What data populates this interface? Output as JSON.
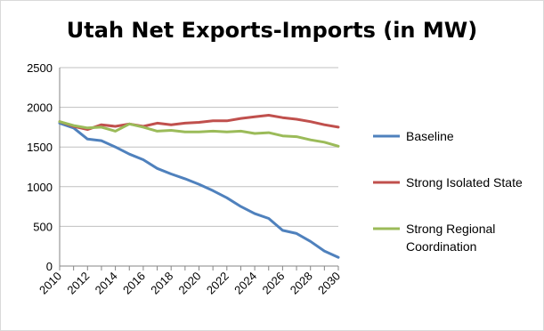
{
  "chart_data": {
    "type": "line",
    "title": "Utah Net Exports-Imports (in MW)",
    "xlabel": "",
    "ylabel": "",
    "ylim": [
      0,
      2500
    ],
    "yticks": [
      0,
      500,
      1000,
      1500,
      2000,
      2500
    ],
    "x": [
      2010,
      2011,
      2012,
      2013,
      2014,
      2015,
      2016,
      2017,
      2018,
      2019,
      2020,
      2021,
      2022,
      2023,
      2024,
      2025,
      2026,
      2027,
      2028,
      2029,
      2030
    ],
    "xticks": [
      "2010",
      "2012",
      "2014",
      "2016",
      "2018",
      "2020",
      "2022",
      "2024",
      "2026",
      "2028",
      "2030"
    ],
    "grid": "horizontal",
    "legend_position": "right",
    "series": [
      {
        "name": "Baseline",
        "color": "#4f81bd",
        "values": [
          1800,
          1740,
          1600,
          1580,
          1500,
          1410,
          1340,
          1230,
          1160,
          1100,
          1030,
          950,
          860,
          750,
          660,
          600,
          450,
          410,
          310,
          190,
          110
        ]
      },
      {
        "name": "Strong Isolated State",
        "color": "#c0504d",
        "values": [
          1820,
          1760,
          1720,
          1780,
          1760,
          1790,
          1760,
          1800,
          1780,
          1800,
          1810,
          1830,
          1830,
          1860,
          1880,
          1900,
          1870,
          1850,
          1820,
          1780,
          1750
        ]
      },
      {
        "name": "Strong Regional Coordination",
        "legend_lines": [
          "Strong Regional",
          "Coordination"
        ],
        "color": "#9bbb59",
        "values": [
          1820,
          1770,
          1740,
          1750,
          1700,
          1790,
          1750,
          1700,
          1710,
          1690,
          1690,
          1700,
          1690,
          1700,
          1670,
          1680,
          1640,
          1630,
          1590,
          1560,
          1510
        ]
      }
    ]
  }
}
